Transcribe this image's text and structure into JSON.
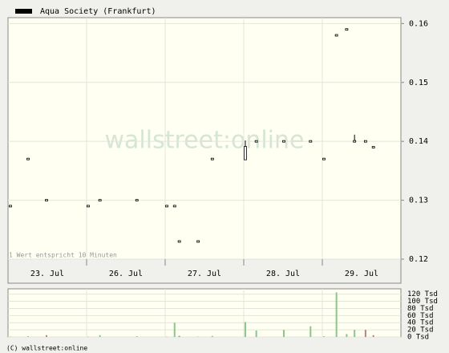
{
  "chart_data": {
    "type": "candlestick",
    "legend": "Aqua Society (Frankfurt)",
    "legend_color": "#000000",
    "watermark": "wallstreet:online",
    "note": "1 Wert entspricht 10 Minuten",
    "copyright": "(C) wallstreet:online",
    "xlim": [
      0,
      5
    ],
    "xticks": [
      {
        "value": 0.5,
        "label": "23. Jul"
      },
      {
        "value": 1.5,
        "label": "26. Jul"
      },
      {
        "value": 2.5,
        "label": "27. Jul"
      },
      {
        "value": 3.5,
        "label": "28. Jul"
      },
      {
        "value": 4.5,
        "label": "29. Jul"
      }
    ],
    "ylim": [
      0.12,
      0.161
    ],
    "yticks": [
      0.12,
      0.13,
      0.14,
      0.15,
      0.16
    ],
    "grid": true,
    "x": [
      0.03,
      0.255,
      0.49,
      1.02,
      1.17,
      1.64,
      2.02,
      2.12,
      2.18,
      2.42,
      2.6,
      3.02,
      3.16,
      3.51,
      3.85,
      4.02,
      4.18,
      4.31,
      4.41,
      4.55,
      4.65
    ],
    "open": [
      0.129,
      0.137,
      0.13,
      0.129,
      0.13,
      0.13,
      0.129,
      0.129,
      0.123,
      0.123,
      0.137,
      0.137,
      0.14,
      0.14,
      0.14,
      0.137,
      0.158,
      0.159,
      0.14,
      0.14,
      0.139
    ],
    "high": [
      0.129,
      0.137,
      0.13,
      0.129,
      0.13,
      0.13,
      0.129,
      0.129,
      0.123,
      0.123,
      0.137,
      0.14,
      0.14,
      0.14,
      0.14,
      0.137,
      0.158,
      0.159,
      0.141,
      0.14,
      0.139
    ],
    "low": [
      0.129,
      0.137,
      0.13,
      0.129,
      0.13,
      0.13,
      0.129,
      0.129,
      0.123,
      0.123,
      0.137,
      0.137,
      0.14,
      0.14,
      0.14,
      0.137,
      0.158,
      0.159,
      0.14,
      0.14,
      0.139
    ],
    "close": [
      0.129,
      0.137,
      0.13,
      0.129,
      0.13,
      0.13,
      0.129,
      0.129,
      0.123,
      0.123,
      0.137,
      0.139,
      0.14,
      0.14,
      0.14,
      0.137,
      0.158,
      0.159,
      0.14,
      0.14,
      0.139
    ],
    "volume": [
      1,
      2,
      5,
      1,
      5,
      2,
      1,
      40,
      3,
      1,
      3,
      42,
      18,
      20,
      30,
      2,
      125,
      8,
      20,
      20,
      5
    ],
    "volume_colors": [
      "#88c888",
      "#88c888",
      "#c08080",
      "#88c888",
      "#88c888",
      "#88c888",
      "#88c888",
      "#88c888",
      "#c08080",
      "#88c888",
      "#88c888",
      "#88c888",
      "#88c888",
      "#88c888",
      "#88c888",
      "#88c888",
      "#88c888",
      "#88c888",
      "#88c888",
      "#c08080",
      "#c08080"
    ],
    "volume_ylim": [
      0,
      135
    ],
    "volume_yticks": [
      {
        "value": 0,
        "label": "0 Tsd"
      },
      {
        "value": 20,
        "label": "20 Tsd"
      },
      {
        "value": 40,
        "label": "40 Tsd"
      },
      {
        "value": 60,
        "label": "60 Tsd"
      },
      {
        "value": 80,
        "label": "80 Tsd"
      },
      {
        "value": 100,
        "label": "100 Tsd"
      },
      {
        "value": 120,
        "label": "120 Tsd"
      }
    ]
  }
}
